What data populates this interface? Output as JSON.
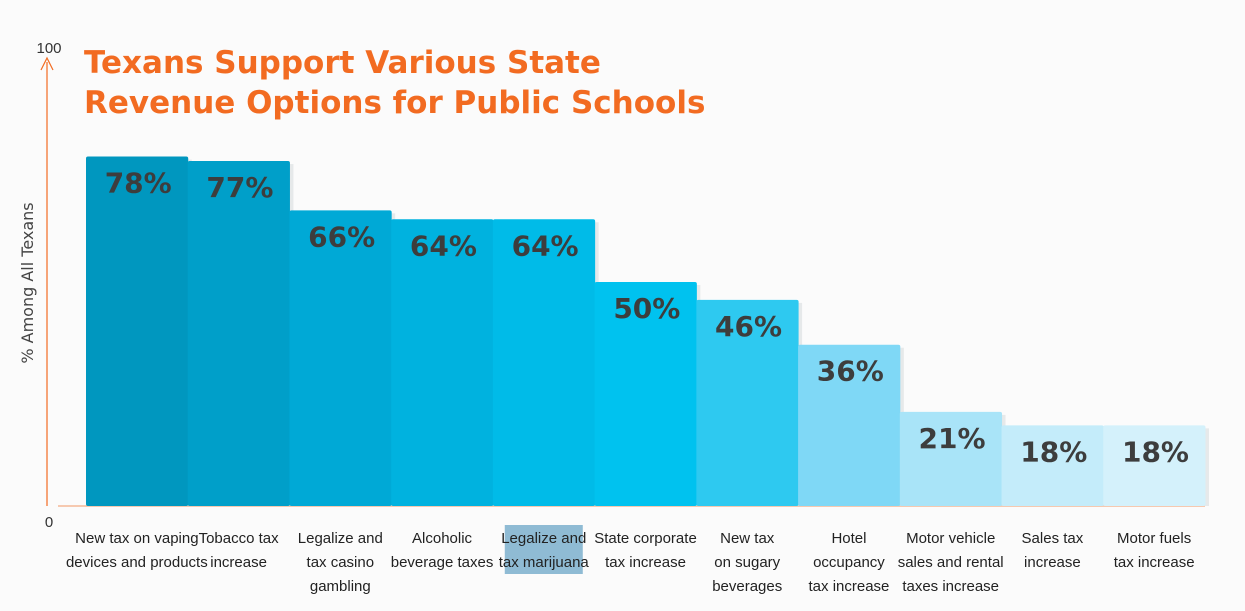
{
  "chart_data": {
    "type": "bar",
    "title_lines": [
      "Texans Support Various State",
      "Revenue Options for Public Schools"
    ],
    "ylabel": "% Among All Texans",
    "ylim": [
      0,
      100
    ],
    "y_ticks": [
      "0",
      "100"
    ],
    "categories": [
      [
        "New tax on vaping",
        "devices and products"
      ],
      [
        "Tobacco tax",
        "increase"
      ],
      [
        "Legalize and",
        "tax casino",
        "gambling"
      ],
      [
        "Alcoholic",
        "beverage taxes"
      ],
      [
        "Legalize and",
        "tax marijuana"
      ],
      [
        "State corporate",
        "tax increase"
      ],
      [
        "New tax",
        "on sugary",
        "beverages"
      ],
      [
        "Hotel",
        "occupancy",
        "tax increase"
      ],
      [
        "Motor vehicle",
        "sales and rental",
        "taxes increase"
      ],
      [
        "Sales tax",
        "increase"
      ],
      [
        "Motor fuels",
        "tax increase"
      ]
    ],
    "values": [
      78,
      77,
      66,
      64,
      64,
      50,
      46,
      36,
      21,
      18,
      18
    ],
    "value_labels": [
      "78%",
      "77%",
      "66%",
      "64%",
      "64%",
      "50%",
      "46%",
      "36%",
      "21%",
      "18%",
      "18%"
    ],
    "highlighted_category_index": 4,
    "colors": {
      "title": "#f26b21",
      "axis": "#f26b21",
      "bars": [
        "#0097bf",
        "#009fc9",
        "#00a9d6",
        "#00b2df",
        "#00bbe8",
        "#00c2ef",
        "#2ec9f0",
        "#7fd8f6",
        "#a9e4f8",
        "#c4ecfa",
        "#d4f1fb"
      ],
      "highlight": "#8fbbd4"
    }
  }
}
